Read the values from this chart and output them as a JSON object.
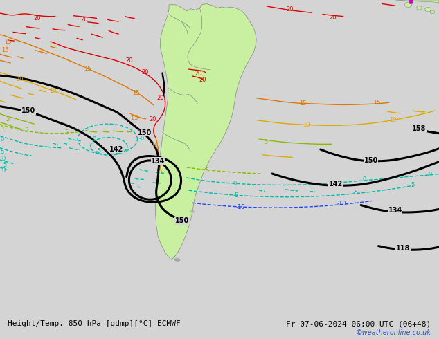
{
  "title_left": "Height/Temp. 850 hPa [gdmp][°C] ECMWF",
  "title_right": "Fr 07-06-2024 06:00 UTC (06+48)",
  "watermark": "©weatheronline.co.uk",
  "bg_color": "#d4d4d4",
  "map_bg_color": "#d4d4d4",
  "land_color": "#c8f0a0",
  "border_color": "#888888",
  "figsize": [
    6.34,
    4.9
  ],
  "dpi": 100,
  "bottom_bar_color": "#ffffff",
  "bottom_text_color": "#000000",
  "watermark_color": "#3355cc",
  "black_lw": 2.2,
  "color_lw": 1.0,
  "red": "#dd0000",
  "orange": "#dd7700",
  "yellow_orange": "#ddaa00",
  "green": "#88bb00",
  "cyan": "#00bbaa",
  "blue": "#2244ff",
  "magenta": "#cc00cc"
}
